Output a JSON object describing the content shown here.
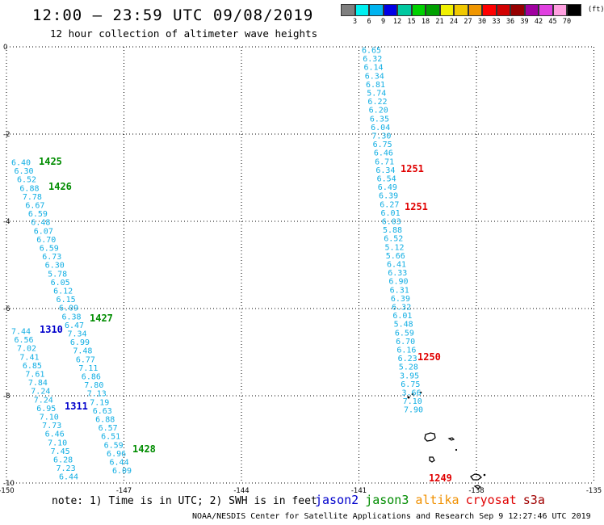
{
  "header": {
    "title": "12:00 – 23:59 UTC 09/08/2019",
    "subtitle": "12 hour collection of altimeter wave heights"
  },
  "color_scale": {
    "colors": [
      "#7f7f7f",
      "#00f0f0",
      "#00b4f0",
      "#0000e6",
      "#00c8a0",
      "#00d200",
      "#00a000",
      "#f0f000",
      "#f0c800",
      "#f09600",
      "#ff0000",
      "#d20000",
      "#960000",
      "#a000a0",
      "#e040e0",
      "#ffa0e0",
      "#000000"
    ],
    "labels": [
      "3",
      "6",
      "9",
      "12",
      "15",
      "18",
      "21",
      "24",
      "27",
      "30",
      "33",
      "36",
      "39",
      "42",
      "45",
      "70"
    ],
    "unit": "(ft)"
  },
  "map": {
    "lon_ticks": [
      "-150",
      "-147",
      "-144",
      "-141",
      "-138",
      "-135"
    ],
    "lat_ticks": [
      "0",
      "-2",
      "-4",
      "-6",
      "-8",
      "-10"
    ],
    "track_color": "#11aee3",
    "tracks": [
      {
        "values": [
          "6.65",
          "6.32",
          "6.14",
          "6.34",
          "6.81",
          "5.74",
          "6.22",
          "6.20",
          "6.35",
          "6.04",
          "7.30",
          "6.75",
          "6.46",
          "6.71",
          "6.34",
          "6.54",
          "6.49",
          "6.39",
          "6.27",
          "6.01",
          "6.03",
          "5.88",
          "6.52",
          "5.12",
          "5.66",
          "6.41",
          "6.33",
          "6.90",
          "6.31",
          "6.39",
          "6.32",
          "6.01",
          "5.48",
          "6.59",
          "6.70",
          "6.16",
          "6.23",
          "5.28",
          "3.95",
          "6.75",
          "3.66",
          "7.10",
          "7.90"
        ]
      },
      {
        "values": [
          "6.40",
          "6.30",
          "6.52",
          "6.88",
          "7.78",
          "6.67",
          "6.59",
          "6.48",
          "6.07",
          "6.70",
          "6.59",
          "6.73",
          "6.30",
          "5.78",
          "6.05",
          "6.12",
          "6.15",
          "6.09",
          "6.38",
          "6.47",
          "7.34",
          "6.99",
          "7.48",
          "6.77",
          "7.11",
          "6.86",
          "7.80",
          "7.13",
          "7.19",
          "6.63",
          "6.88",
          "6.57",
          "6.51",
          "6.59",
          "6.96",
          "6.44",
          "6.09"
        ]
      },
      {
        "values": [
          "7.44",
          "6.56",
          "7.02",
          "7.41",
          "6.85",
          "7.61",
          "7.84",
          "7.24",
          "7.24",
          "6.95",
          "7.10",
          "7.73",
          "6.46",
          "7.10",
          "7.45",
          "6.28",
          "7.23",
          "6.44"
        ]
      }
    ],
    "pass_labels": [
      {
        "text": "1425",
        "color": "#008c00"
      },
      {
        "text": "1426",
        "color": "#008c00"
      },
      {
        "text": "1427",
        "color": "#008c00"
      },
      {
        "text": "1428",
        "color": "#008c00"
      },
      {
        "text": "1310",
        "color": "#0000cc"
      },
      {
        "text": "1311",
        "color": "#0000cc"
      },
      {
        "text": "1251",
        "color": "#e00000"
      },
      {
        "text": "1251",
        "color": "#e00000"
      },
      {
        "text": "1250",
        "color": "#e00000"
      },
      {
        "text": "1249",
        "color": "#e00000"
      }
    ]
  },
  "footer": {
    "note": "note: 1) Time is in UTC; 2) SWH is in feet",
    "satellites": [
      {
        "name": "jason2",
        "color": "#0000cc"
      },
      {
        "name": "jason3",
        "color": "#008c00"
      },
      {
        "name": "altika",
        "color": "#f09000"
      },
      {
        "name": "cryosat",
        "color": "#e00000"
      },
      {
        "name": "s3a",
        "color": "#a00000"
      }
    ],
    "credit": "NOAA/NESDIS Center for Satellite Applications and Research   Sep  9 12:27:46 UTC 2019"
  }
}
